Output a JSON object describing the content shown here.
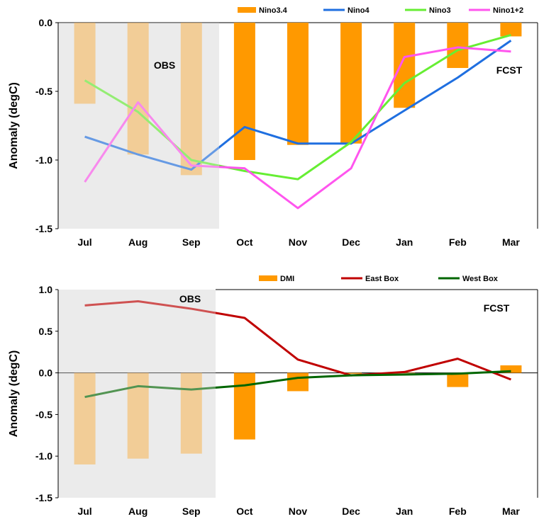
{
  "chart_data": [
    {
      "type": "bar+line",
      "ylabel": "Anomaly (degC)",
      "ylim": [
        -1.5,
        0.0
      ],
      "yticks": [
        "0.0",
        "-0.5",
        "-1.0",
        "-1.5"
      ],
      "categories": [
        "Jul",
        "Aug",
        "Sep",
        "Oct",
        "Nov",
        "Dec",
        "Jan",
        "Feb",
        "Mar"
      ],
      "observed_months": 3,
      "annotations": {
        "obs": "OBS",
        "fcst": "FCST"
      },
      "legend_placement": "top-right",
      "bars": {
        "name": "Nino3.4",
        "color": "#ff9900",
        "values": [
          -0.59,
          -0.96,
          -1.11,
          -1.0,
          -0.89,
          -0.88,
          -0.62,
          -0.33,
          -0.1
        ]
      },
      "series": [
        {
          "name": "Nino4",
          "color": "#1f6fe0",
          "values": [
            -0.83,
            -0.96,
            -1.07,
            -0.76,
            -0.88,
            -0.88,
            -0.64,
            -0.4,
            -0.13
          ]
        },
        {
          "name": "Nino3",
          "color": "#66ee33",
          "values": [
            -0.42,
            -0.65,
            -1.0,
            -1.08,
            -1.14,
            -0.87,
            -0.44,
            -0.2,
            -0.09
          ]
        },
        {
          "name": "Nino1+2",
          "color": "#ff55ee",
          "values": [
            -1.16,
            -0.58,
            -1.04,
            -1.06,
            -1.35,
            -1.06,
            -0.25,
            -0.18,
            -0.21
          ]
        }
      ]
    },
    {
      "type": "bar+line",
      "ylabel": "Anomaly (degC)",
      "ylim": [
        -1.5,
        1.0
      ],
      "yticks": [
        "1.0",
        "0.5",
        "0.0",
        "-0.5",
        "-1.0",
        "-1.5"
      ],
      "categories": [
        "Jul",
        "Aug",
        "Sep",
        "Oct",
        "Nov",
        "Dec",
        "Jan",
        "Feb",
        "Mar"
      ],
      "observed_months": 3,
      "annotations": {
        "obs": "OBS",
        "fcst": "FCST"
      },
      "legend_placement": "top-right",
      "bars": {
        "name": "DMI",
        "color": "#ff9900",
        "values": [
          -1.1,
          -1.03,
          -0.97,
          -0.8,
          -0.22,
          -0.01,
          0.0,
          -0.17,
          0.09
        ]
      },
      "series": [
        {
          "name": "East Box",
          "color": "#c00000",
          "values": [
            0.81,
            0.86,
            0.77,
            0.66,
            0.16,
            -0.03,
            0.01,
            0.17,
            -0.08
          ]
        },
        {
          "name": "West Box",
          "color": "#006600",
          "values": [
            -0.29,
            -0.16,
            -0.2,
            -0.15,
            -0.06,
            -0.03,
            -0.02,
            -0.01,
            0.02
          ]
        }
      ]
    }
  ]
}
